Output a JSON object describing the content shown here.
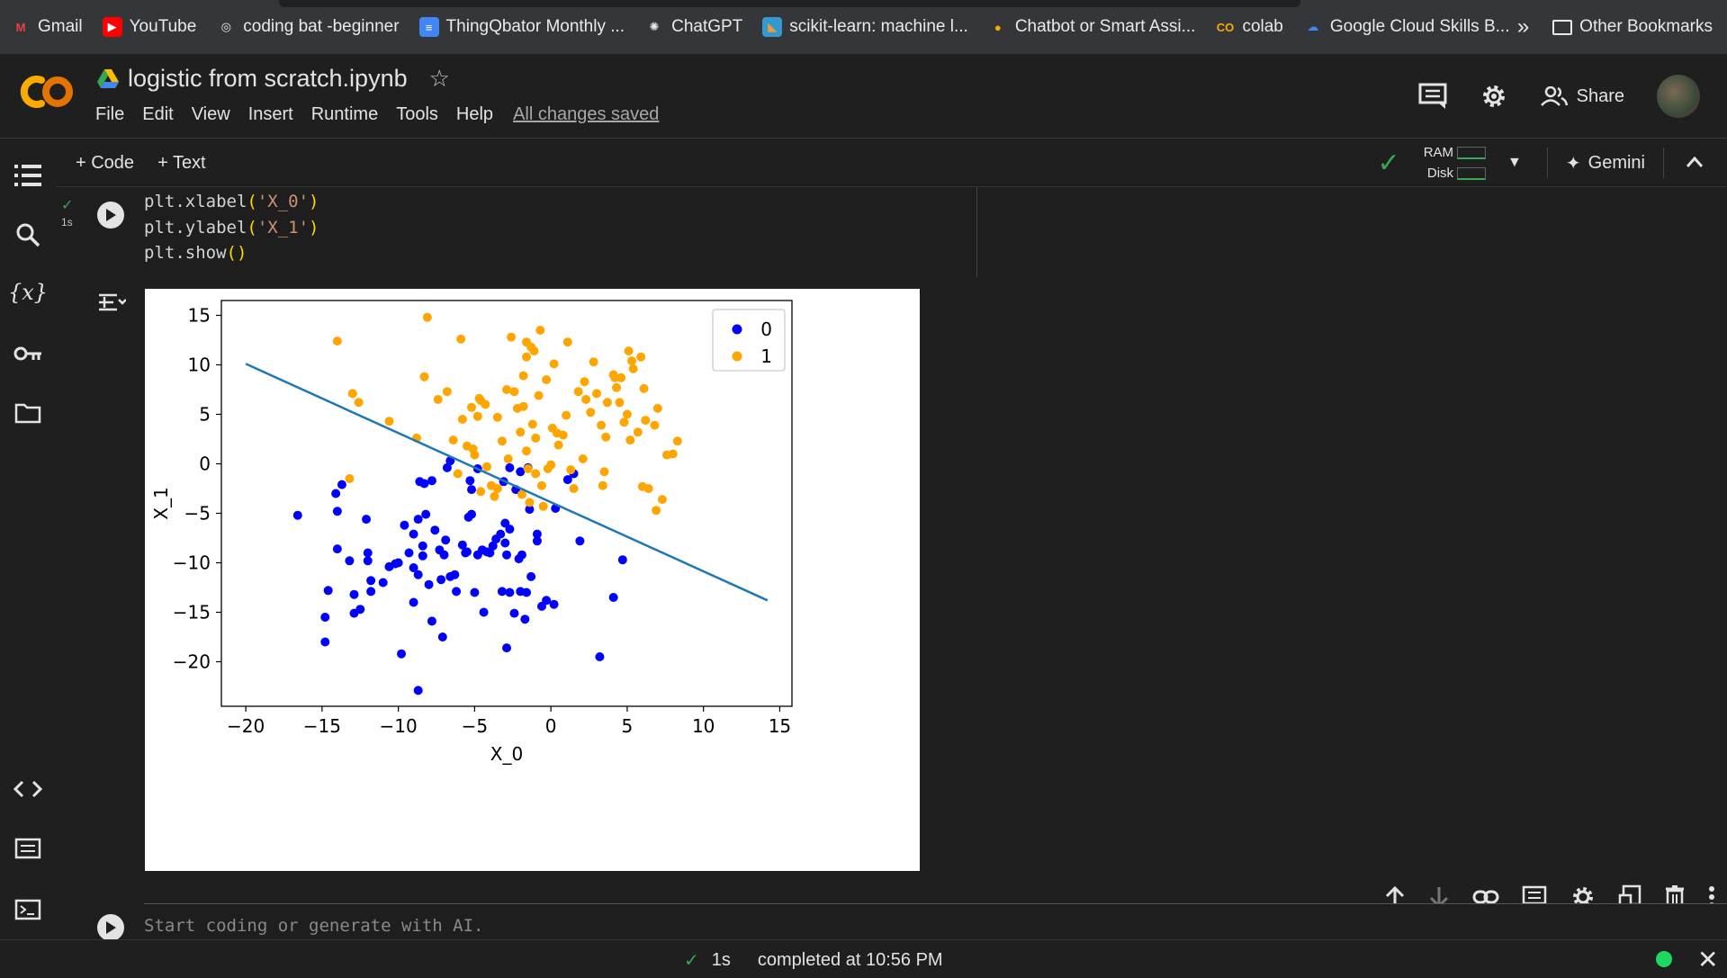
{
  "bookmarks": [
    {
      "label": "Gmail",
      "icon": "gmail-icon"
    },
    {
      "label": "YouTube",
      "icon": "youtube-icon"
    },
    {
      "label": "coding bat -beginner",
      "icon": "globe-icon"
    },
    {
      "label": "ThingQbator Monthly ...",
      "icon": "docs-icon"
    },
    {
      "label": "ChatGPT",
      "icon": "chatgpt-icon"
    },
    {
      "label": "scikit-learn: machine l...",
      "icon": "scikit-icon"
    },
    {
      "label": "Chatbot or Smart Assi...",
      "icon": "chatbot-icon"
    },
    {
      "label": "colab",
      "icon": "colab-icon"
    },
    {
      "label": "Google Cloud Skills B...",
      "icon": "gcloud-icon"
    }
  ],
  "other_bookmarks": "Other Bookmarks",
  "notebook": {
    "title": "logistic from scratch.ipynb",
    "saved_status": "All changes saved"
  },
  "menu": [
    "File",
    "Edit",
    "View",
    "Insert",
    "Runtime",
    "Tools",
    "Help"
  ],
  "header_actions": {
    "share_label": "Share"
  },
  "toolbar": {
    "add_code": "+ Code",
    "add_text": "+ Text",
    "ram_label": "RAM",
    "disk_label": "Disk",
    "gemini_label": "Gemini"
  },
  "cell": {
    "exec_time": "1s",
    "code_lines": [
      {
        "fn": "plt.xlabel",
        "arg": "'X_0'"
      },
      {
        "fn": "plt.ylabel",
        "arg": "'X_1'"
      },
      {
        "fn": "plt.show",
        "arg": ""
      }
    ]
  },
  "new_cell": {
    "placeholder": "Start coding or generate with AI."
  },
  "status": {
    "time": "1s",
    "message": "completed at 10:56 PM"
  },
  "colors": {
    "class0": "#0000ff",
    "class1": "#ffa500",
    "boundary": "#1f77b4",
    "colab_orange": "#f9ab00"
  },
  "chart_data": {
    "type": "scatter",
    "xlabel": "X_0",
    "ylabel": "X_1",
    "xlim": [
      -21.6,
      15.8
    ],
    "ylim": [
      -24.5,
      16.5
    ],
    "xticks": [
      -20,
      -15,
      -10,
      -5,
      0,
      5,
      10,
      15
    ],
    "yticks": [
      -20,
      -15,
      -10,
      -5,
      0,
      5,
      10,
      15
    ],
    "grid": false,
    "legend": "top-right",
    "series": [
      {
        "name": "0",
        "color": "#0000ff",
        "points": [
          [
            -16.6,
            -5.2
          ],
          [
            -14.1,
            -3.0
          ],
          [
            -13.7,
            -2.1
          ],
          [
            -14.0,
            -4.8
          ],
          [
            -14.0,
            -8.6
          ],
          [
            -13.2,
            -9.8
          ],
          [
            -14.6,
            -12.8
          ],
          [
            -14.8,
            -15.5
          ],
          [
            -14.8,
            -18.0
          ],
          [
            -12.9,
            -13.2
          ],
          [
            -12.9,
            -15.1
          ],
          [
            -12.5,
            -14.7
          ],
          [
            -12.1,
            -5.6
          ],
          [
            -12.0,
            -9.0
          ],
          [
            -12.0,
            -9.8
          ],
          [
            -11.8,
            -11.8
          ],
          [
            -11.8,
            -12.9
          ],
          [
            -11.0,
            -12.0
          ],
          [
            -10.6,
            -10.4
          ],
          [
            -10.2,
            -10.1
          ],
          [
            -10.0,
            -10.0
          ],
          [
            -9.8,
            -19.2
          ],
          [
            -9.6,
            -6.2
          ],
          [
            -9.3,
            -9.0
          ],
          [
            -9.0,
            -7.1
          ],
          [
            -9.0,
            -10.5
          ],
          [
            -9.0,
            -14.0
          ],
          [
            -8.7,
            -11.2
          ],
          [
            -8.4,
            -9.3
          ],
          [
            -8.7,
            -5.6
          ],
          [
            -8.4,
            -8.3
          ],
          [
            -8.2,
            -5.1
          ],
          [
            -8.0,
            -12.2
          ],
          [
            -7.8,
            -1.7
          ],
          [
            -7.6,
            -6.7
          ],
          [
            -7.3,
            -8.7
          ],
          [
            -7.0,
            -9.2
          ],
          [
            -7.2,
            -11.7
          ],
          [
            -6.9,
            -7.7
          ],
          [
            -6.6,
            -11.4
          ],
          [
            -6.3,
            -11.2
          ],
          [
            -6.2,
            -12.9
          ],
          [
            -5.8,
            -8.2
          ],
          [
            -5.5,
            -8.9
          ],
          [
            -5.3,
            -1.7
          ],
          [
            -5.2,
            -5.1
          ],
          [
            -5.0,
            -13.0
          ],
          [
            -4.8,
            -9.2
          ],
          [
            -4.5,
            -8.7
          ],
          [
            -4.2,
            -8.9
          ],
          [
            -4.0,
            -9.0
          ],
          [
            -3.8,
            -8.3
          ],
          [
            -3.6,
            -7.6
          ],
          [
            -3.3,
            -7.1
          ],
          [
            -3.0,
            -6.0
          ],
          [
            -3.0,
            -8.0
          ],
          [
            -2.9,
            -9.2
          ],
          [
            -2.7,
            -6.6
          ],
          [
            -2.7,
            -0.4
          ],
          [
            -2.3,
            -2.6
          ],
          [
            -2.1,
            -9.6
          ],
          [
            -2.0,
            -12.9
          ],
          [
            -1.9,
            -9.2
          ],
          [
            -1.6,
            -13.0
          ],
          [
            -1.3,
            -11.4
          ],
          [
            -0.9,
            -7.1
          ],
          [
            -0.9,
            -7.8
          ],
          [
            -0.6,
            -14.4
          ],
          [
            -0.3,
            -13.8
          ],
          [
            0.2,
            -14.2
          ],
          [
            -1.4,
            -4.6
          ],
          [
            0.3,
            -4.5
          ],
          [
            1.1,
            -1.6
          ],
          [
            1.5,
            -1.0
          ],
          [
            1.9,
            -7.8
          ],
          [
            4.1,
            -13.5
          ],
          [
            4.7,
            -9.7
          ],
          [
            3.2,
            -19.5
          ],
          [
            -2.4,
            -15.1
          ],
          [
            -1.7,
            -15.7
          ],
          [
            -4.4,
            -15.0
          ],
          [
            -5.6,
            -9.0
          ],
          [
            -7.8,
            -15.9
          ],
          [
            -7.1,
            -17.5
          ],
          [
            -8.7,
            -22.9
          ],
          [
            -2.9,
            -18.6
          ],
          [
            -3.2,
            -12.9
          ],
          [
            -2.7,
            -13.0
          ],
          [
            -5.4,
            -5.4
          ],
          [
            -5.2,
            -2.6
          ],
          [
            -1.5,
            -0.4
          ],
          [
            -8.3,
            -2.0
          ],
          [
            -6.6,
            0.3
          ],
          [
            -4.8,
            -0.5
          ],
          [
            -6.8,
            -0.4
          ],
          [
            -8.6,
            -1.8
          ],
          [
            -2.0,
            -0.8
          ],
          [
            -3.1,
            -1.8
          ]
        ]
      },
      {
        "name": "1",
        "color": "#ffa500",
        "points": [
          [
            -14.0,
            12.4
          ],
          [
            -13.2,
            -1.5
          ],
          [
            -13.0,
            7.1
          ],
          [
            -12.6,
            6.2
          ],
          [
            -10.6,
            4.3
          ],
          [
            -8.8,
            2.6
          ],
          [
            -8.3,
            8.8
          ],
          [
            -8.1,
            14.8
          ],
          [
            -7.4,
            6.5
          ],
          [
            -6.8,
            7.3
          ],
          [
            -6.4,
            2.4
          ],
          [
            -5.8,
            4.5
          ],
          [
            -5.9,
            12.6
          ],
          [
            -5.5,
            1.8
          ],
          [
            -5.2,
            5.7
          ],
          [
            -5.0,
            0.9
          ],
          [
            -4.8,
            4.8
          ],
          [
            -4.6,
            6.4
          ],
          [
            -4.3,
            6.0
          ],
          [
            -4.2,
            -0.3
          ],
          [
            -3.9,
            -2.2
          ],
          [
            -3.7,
            -3.3
          ],
          [
            -3.5,
            -2.5
          ],
          [
            -2.9,
            7.5
          ],
          [
            -2.8,
            0.5
          ],
          [
            -2.4,
            7.3
          ],
          [
            -2.2,
            5.6
          ],
          [
            -2.0,
            3.2
          ],
          [
            -1.9,
            -3.1
          ],
          [
            -1.8,
            5.8
          ],
          [
            -1.6,
            1.3
          ],
          [
            -1.5,
            -0.5
          ],
          [
            -1.2,
            4.0
          ],
          [
            -1.0,
            2.6
          ],
          [
            -0.8,
            6.9
          ],
          [
            -0.6,
            -2.2
          ],
          [
            -0.5,
            -4.3
          ],
          [
            -0.2,
            -0.5
          ],
          [
            0.1,
            3.6
          ],
          [
            0.5,
            1.9
          ],
          [
            0.8,
            2.9
          ],
          [
            1.0,
            4.9
          ],
          [
            1.3,
            -0.6
          ],
          [
            1.5,
            -2.5
          ],
          [
            1.8,
            7.3
          ],
          [
            2.2,
            8.3
          ],
          [
            2.6,
            5.2
          ],
          [
            2.8,
            10.3
          ],
          [
            3.0,
            7.1
          ],
          [
            3.3,
            3.9
          ],
          [
            3.7,
            6.2
          ],
          [
            4.1,
            9.0
          ],
          [
            4.3,
            7.7
          ],
          [
            4.5,
            6.2
          ],
          [
            4.6,
            8.7
          ],
          [
            4.8,
            4.2
          ],
          [
            5.0,
            5.0
          ],
          [
            5.2,
            2.4
          ],
          [
            5.4,
            9.6
          ],
          [
            5.7,
            3.2
          ],
          [
            6.0,
            -2.3
          ],
          [
            6.4,
            -2.5
          ],
          [
            6.8,
            3.9
          ],
          [
            7.0,
            5.6
          ],
          [
            7.3,
            -3.6
          ],
          [
            7.6,
            0.9
          ],
          [
            8.0,
            1.0
          ],
          [
            8.3,
            2.3
          ],
          [
            6.9,
            -4.7
          ],
          [
            3.5,
            -0.8
          ],
          [
            2.1,
            0.5
          ],
          [
            -2.6,
            12.8
          ],
          [
            -1.6,
            12.3
          ],
          [
            -0.7,
            13.5
          ],
          [
            1.1,
            12.3
          ],
          [
            -1.1,
            11.4
          ],
          [
            0.2,
            10.1
          ],
          [
            5.9,
            10.8
          ],
          [
            5.1,
            11.4
          ],
          [
            4.2,
            8.7
          ],
          [
            -1.8,
            8.9
          ],
          [
            -4.7,
            6.6
          ],
          [
            -5.1,
            1.5
          ],
          [
            -3.5,
            4.7
          ],
          [
            -1.3,
            11.8
          ],
          [
            -1.6,
            10.8
          ],
          [
            0.0,
            -0.1
          ],
          [
            2.3,
            6.5
          ],
          [
            6.2,
            4.4
          ],
          [
            3.4,
            -2.2
          ],
          [
            -0.3,
            8.5
          ],
          [
            -3.2,
            2.3
          ],
          [
            -1.0,
            -1.0
          ],
          [
            -6.1,
            -1.0
          ],
          [
            -4.6,
            -2.8
          ],
          [
            0.4,
            3.1
          ],
          [
            3.6,
            2.7
          ],
          [
            5.3,
            10.4
          ],
          [
            6.1,
            7.6
          ],
          [
            -1.4,
            -3.9
          ]
        ]
      }
    ],
    "boundary_line": {
      "x": [
        -20.0,
        14.2
      ],
      "y": [
        10.1,
        -13.8
      ]
    }
  }
}
